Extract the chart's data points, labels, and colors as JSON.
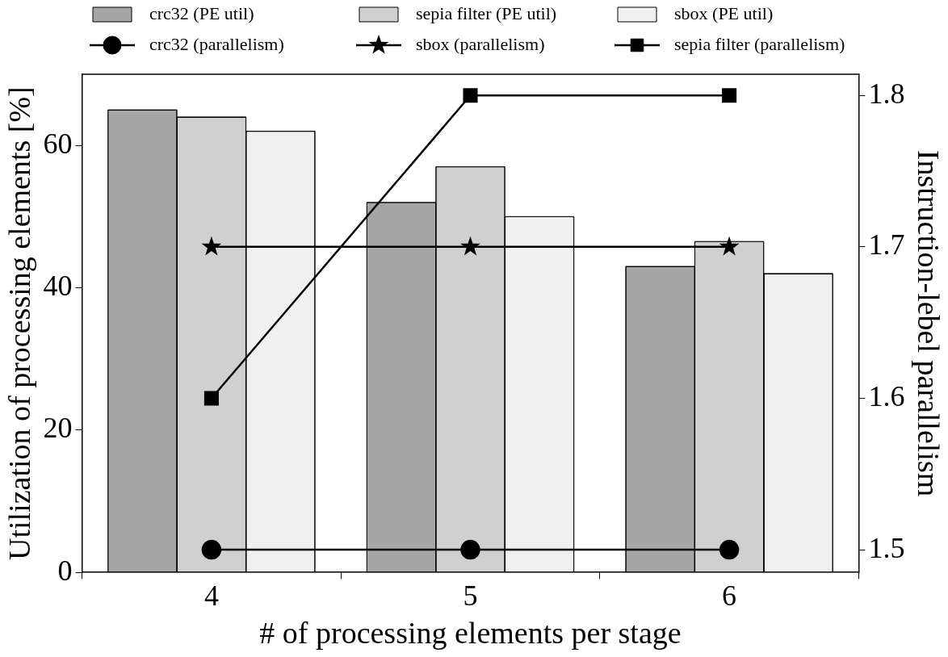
{
  "chart_data": {
    "type": "bar",
    "xlabel": "# of processing elements per stage",
    "ylabel": "Utilization of processing elements [%]",
    "y2label": "Instruction-lebel parallelism",
    "categories": [
      "4",
      "5",
      "6"
    ],
    "series": [
      {
        "name": "crc32 (PE util)",
        "color": "#a6a6a6",
        "values": [
          65,
          52,
          43
        ]
      },
      {
        "name": "sepia filter (PE util)",
        "color": "#d0d0d0",
        "values": [
          64,
          57,
          46.5
        ]
      },
      {
        "name": "sbox (PE util)",
        "color": "#f0f0f0",
        "values": [
          62,
          50,
          42
        ]
      },
      {
        "name": "crc32 (parallelism)",
        "type": "line",
        "axis": "y2",
        "marker": "circle",
        "color": "#000000",
        "values": [
          1.5,
          1.5,
          1.5
        ]
      },
      {
        "name": "sbox (parallelism)",
        "type": "line",
        "axis": "y2",
        "marker": "star",
        "color": "#000000",
        "values": [
          1.7,
          1.7,
          1.7
        ]
      },
      {
        "name": "sepia filter (parallelism)",
        "type": "line",
        "axis": "y2",
        "marker": "square",
        "color": "#000000",
        "values": [
          1.6,
          1.8,
          1.8
        ]
      }
    ],
    "ylim": [
      0,
      70
    ],
    "yticks": [
      0,
      20,
      40,
      60
    ],
    "y2lim": [
      1.485,
      1.814
    ],
    "y2ticks": [
      1.5,
      1.6,
      1.7,
      1.8
    ],
    "grid": false,
    "legend": "top"
  }
}
